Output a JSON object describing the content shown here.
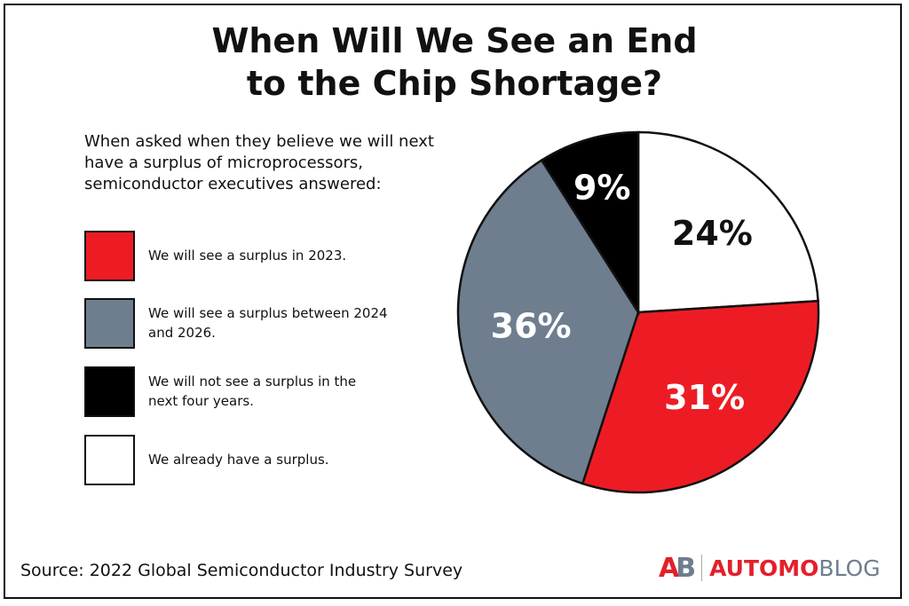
{
  "chart_data": {
    "type": "pie",
    "title": "When Will We See an End to the Chip Shortage?",
    "title_lines": [
      "When Will We See an End",
      "to the Chip Shortage?"
    ],
    "subtitle_lines": [
      "When asked when they believe we will next",
      "have a surplus of microprocessors,",
      "semiconductor executives answered:"
    ],
    "slices": [
      {
        "label": "We already have a surplus.",
        "value": 24,
        "display": "24%",
        "color": "#ffffff",
        "text_color": "#111111"
      },
      {
        "label": "We will see a surplus in 2023.",
        "value": 31,
        "display": "31%",
        "color": "#ed1c24",
        "text_color": "#ffffff"
      },
      {
        "label": "We will see a surplus between 2024 and 2026.",
        "value": 36,
        "display": "36%",
        "color": "#6e7e8e",
        "text_color": "#ffffff"
      },
      {
        "label": "We will not see a surplus in the next four years.",
        "value": 9,
        "display": "9%",
        "color": "#000000",
        "text_color": "#ffffff"
      }
    ],
    "start_angle": "12 o'clock, clockwise",
    "legend": [
      {
        "lines": [
          "We will see a surplus in 2023."
        ],
        "color": "#ed1c24"
      },
      {
        "lines": [
          "We will see a surplus between 2024",
          "and 2026."
        ],
        "color": "#6e7e8e"
      },
      {
        "lines": [
          "We will not see a surplus in the",
          "next four years."
        ],
        "color": "#000000"
      },
      {
        "lines": [
          "We already have a surplus."
        ],
        "color": "#ffffff"
      }
    ],
    "legend_placement": "left"
  },
  "source": "Source: 2022 Global Semiconductor Industry Survey",
  "logo": {
    "mark": "AB",
    "word1": "AUTOMO",
    "word2": "BLOG"
  }
}
